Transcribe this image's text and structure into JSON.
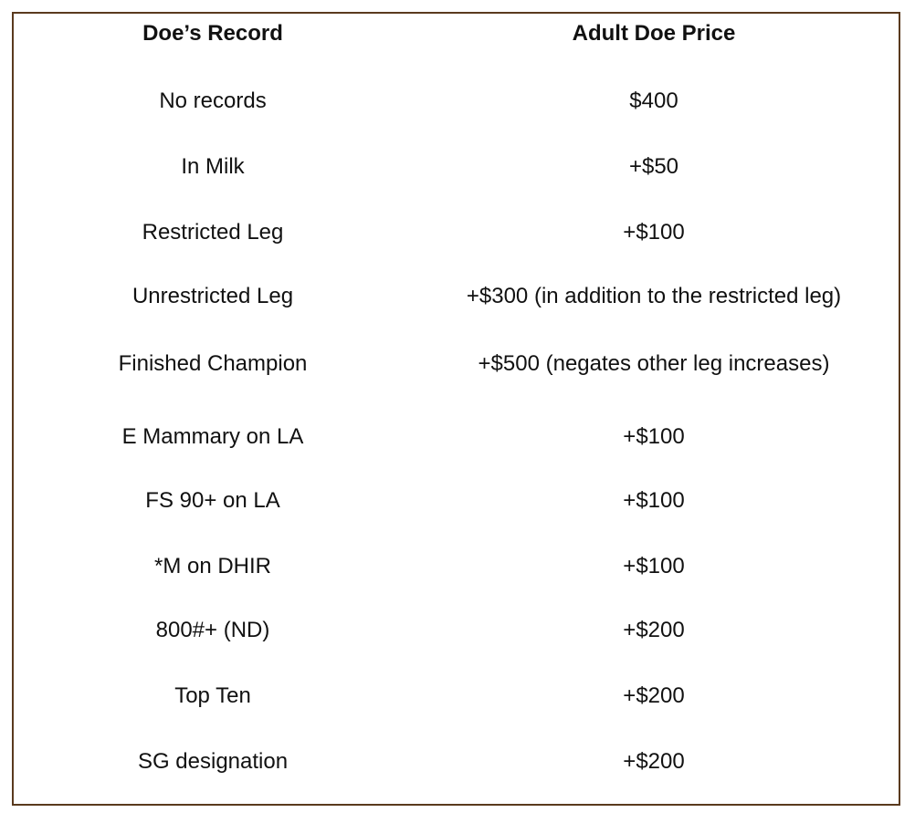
{
  "table": {
    "headers": [
      "Doe’s Record",
      "Adult Doe Price"
    ],
    "rows": [
      {
        "record": "No records",
        "price": "$400"
      },
      {
        "record": "In Milk",
        "price": "+$50"
      },
      {
        "record": "Restricted Leg",
        "price": "+$100"
      },
      {
        "record": "Unrestricted Leg",
        "price": "+$300 (in addition to the restricted leg)"
      },
      {
        "record": "Finished Champion",
        "price": "+$500 (negates other leg increases)"
      },
      {
        "record": "E Mammary on LA",
        "price": "+$100"
      },
      {
        "record": "FS 90+ on LA",
        "price": "+$100"
      },
      {
        "record": "*M on DHIR",
        "price": "+$100"
      },
      {
        "record": "800#+ (ND)",
        "price": "+$200"
      },
      {
        "record": "Top Ten",
        "price": "+$200"
      },
      {
        "record": "SG designation",
        "price": "+$200"
      }
    ]
  },
  "colors": {
    "border": "#5a3a1e",
    "text": "#111111"
  }
}
